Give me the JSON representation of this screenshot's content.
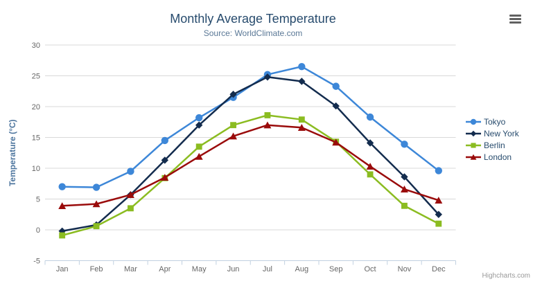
{
  "credit": "Highcharts.com",
  "chart_data": {
    "type": "line",
    "title": "Monthly Average Temperature",
    "subtitle": "Source: WorldClimate.com",
    "categories": [
      "Jan",
      "Feb",
      "Mar",
      "Apr",
      "May",
      "Jun",
      "Jul",
      "Aug",
      "Sep",
      "Oct",
      "Nov",
      "Dec"
    ],
    "series": [
      {
        "name": "Tokyo",
        "color": "#3d87d8",
        "marker": "circle",
        "values": [
          7.0,
          6.9,
          9.5,
          14.5,
          18.2,
          21.5,
          25.2,
          26.5,
          23.3,
          18.3,
          13.9,
          9.6
        ]
      },
      {
        "name": "New York",
        "color": "#132c4e",
        "marker": "diamond",
        "values": [
          -0.2,
          0.8,
          5.7,
          11.3,
          17.0,
          22.0,
          24.8,
          24.1,
          20.1,
          14.1,
          8.6,
          2.5
        ]
      },
      {
        "name": "Berlin",
        "color": "#8bbc21",
        "marker": "square",
        "values": [
          -0.9,
          0.6,
          3.5,
          8.4,
          13.5,
          17.0,
          18.6,
          17.9,
          14.3,
          9.0,
          3.9,
          1.0
        ]
      },
      {
        "name": "London",
        "color": "#9a0b0b",
        "marker": "triangle",
        "values": [
          3.9,
          4.2,
          5.7,
          8.5,
          11.9,
          15.2,
          17.0,
          16.6,
          14.2,
          10.3,
          6.6,
          4.8
        ]
      }
    ],
    "xlabel": "",
    "ylabel": "Temperature (°C)",
    "ylim": [
      -5,
      30
    ],
    "ytick_step": 5,
    "grid": true,
    "legend_position": "right"
  },
  "theme": {
    "title_color": "#274b6d",
    "subtitle_color": "#5a7896",
    "axis_title_color": "#4d759e",
    "axis_label_color": "#666666",
    "gridline_color": "#d8d8d8",
    "axis_line_color": "#c0d0e0",
    "legend_text_color": "#274b6d",
    "credit_color": "#999999",
    "menu_icon_color": "#616161"
  }
}
